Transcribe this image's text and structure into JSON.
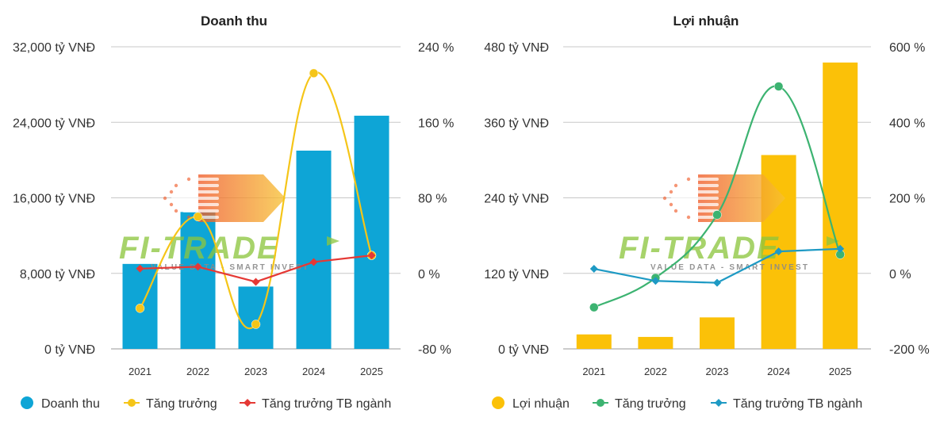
{
  "chart_data": [
    {
      "type": "bar",
      "title": "Doanh thu",
      "categories": [
        "2021",
        "2022",
        "2023",
        "2024",
        "2025"
      ],
      "y_left": {
        "range": [
          0,
          32000
        ],
        "ticks": [
          0,
          8000,
          16000,
          24000,
          32000
        ],
        "tick_labels": [
          "0 tỷ VNĐ",
          "8,000 tỷ VNĐ",
          "16,000 tỷ VNĐ",
          "24,000 tỷ VNĐ",
          "32,000 tỷ VNĐ"
        ]
      },
      "y_right": {
        "range": [
          -80,
          240
        ],
        "ticks": [
          -80,
          0,
          80,
          160,
          240
        ],
        "tick_labels": [
          "-80 %",
          "0 %",
          "80 %",
          "160 %",
          "240 %"
        ]
      },
      "series": [
        {
          "name": "Doanh thu",
          "kind": "bar",
          "axis": "left",
          "color": "#0ea5d6",
          "values": [
            9000,
            14500,
            6600,
            21000,
            24700
          ]
        },
        {
          "name": "Tăng trưởng",
          "kind": "line",
          "axis": "right",
          "color": "#f5c518",
          "values": [
            -37,
            60,
            -54,
            212,
            19
          ]
        },
        {
          "name": "Tăng trưởng TB ngành",
          "kind": "line",
          "axis": "right",
          "color": "#e53935",
          "values": [
            5,
            7,
            -9,
            12,
            19
          ]
        }
      ],
      "legend_position": "bottom",
      "grid": true
    },
    {
      "type": "bar",
      "title": "Lợi nhuận",
      "categories": [
        "2021",
        "2022",
        "2023",
        "2024",
        "2025"
      ],
      "y_left": {
        "range": [
          0,
          480
        ],
        "ticks": [
          0,
          120,
          240,
          360,
          480
        ],
        "tick_labels": [
          "0 tỷ VNĐ",
          "120 tỷ VNĐ",
          "240 tỷ VNĐ",
          "360 tỷ VNĐ",
          "480 tỷ VNĐ"
        ]
      },
      "y_right": {
        "range": [
          -200,
          600
        ],
        "ticks": [
          -200,
          0,
          200,
          400,
          600
        ],
        "tick_labels": [
          "-200 %",
          "0 %",
          "200 %",
          "400 %",
          "600 %"
        ]
      },
      "series": [
        {
          "name": "Lợi nhuận",
          "kind": "bar",
          "axis": "left",
          "color": "#fbc108",
          "values": [
            23,
            19,
            50,
            308,
            455
          ]
        },
        {
          "name": "Tăng trưởng",
          "kind": "line",
          "axis": "right",
          "color": "#3cb371",
          "values": [
            -90,
            -12,
            155,
            495,
            50
          ]
        },
        {
          "name": "Tăng trưởng TB ngành",
          "kind": "line",
          "axis": "right",
          "color": "#1e9ac4",
          "values": [
            12,
            -20,
            -25,
            58,
            65
          ]
        }
      ],
      "legend_position": "bottom",
      "grid": true
    }
  ],
  "watermark": {
    "brand": "FI-TRADE",
    "tagline": "VALUE DATA - SMART INVEST",
    "colors": {
      "arrow_start": "#f05a28",
      "arrow_end": "#f7c232",
      "brand_green": "#8cc63f"
    }
  }
}
